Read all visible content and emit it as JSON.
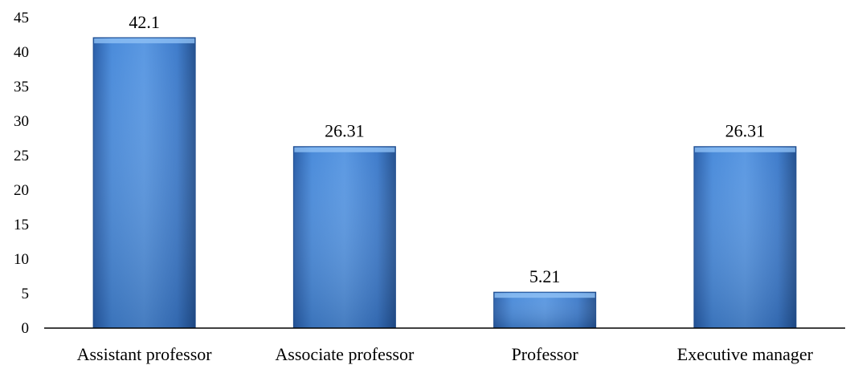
{
  "chart_data": {
    "type": "bar",
    "categories": [
      "Assistant professor",
      "Associate professor",
      "Professor",
      "Executive manager"
    ],
    "values": [
      42.1,
      26.31,
      5.21,
      26.31
    ],
    "data_labels": [
      "42.1",
      "26.31",
      "5.21",
      "26.31"
    ],
    "ylim": [
      0,
      45
    ],
    "yticks": [
      0,
      5,
      10,
      15,
      20,
      25,
      30,
      35,
      40,
      45
    ],
    "title": "",
    "xlabel": "",
    "ylabel": "",
    "grid": false,
    "legend": "none",
    "colors": {
      "bar_light": "#6FA8EA",
      "bar_mid": "#3F7FD0",
      "bar_dark": "#1E4C8F",
      "axis": "#000000",
      "text": "#000000"
    }
  }
}
